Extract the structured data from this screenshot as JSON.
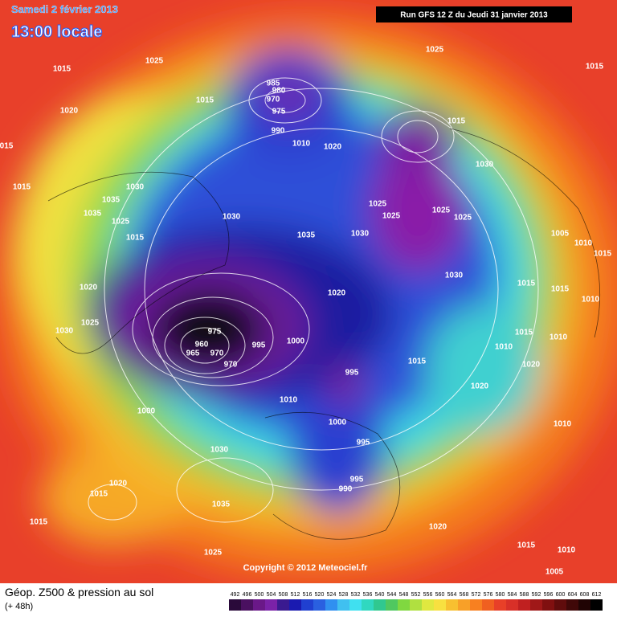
{
  "header": {
    "title": "Samedi 2 février 2013",
    "time": "13:00 locale",
    "run": "Run GFS 12 Z du Jeudi 31 janvier 2013"
  },
  "map": {
    "copyright": "Copyright © 2012 Meteociel.fr",
    "isobar_labels": [
      "1015",
      "1025",
      "1015",
      "1020",
      "015",
      "1015",
      "1035",
      "1030",
      "1035",
      "1025",
      "1015",
      "1020",
      "1025",
      "1030",
      "1000",
      "1030",
      "1020",
      "1015",
      "1035",
      "1015",
      "1025",
      "985",
      "980",
      "975",
      "970",
      "990",
      "1010",
      "1020",
      "1025",
      "1015",
      "1015",
      "1030",
      "1025",
      "1025",
      "1025",
      "1025",
      "1030",
      "1035",
      "1030",
      "1005",
      "1010",
      "1015",
      "1030",
      "1015",
      "1015",
      "1010",
      "1020",
      "975",
      "960",
      "965",
      "970",
      "995",
      "1000",
      "970",
      "995",
      "1010",
      "1000",
      "995",
      "1015",
      "1010",
      "1010",
      "1015",
      "1020",
      "1020",
      "1010",
      "995",
      "990",
      "1020",
      "1015",
      "1010",
      "1005"
    ]
  },
  "footer": {
    "title": "Géop. Z500 & pression au sol",
    "lead": "(+ 48h)",
    "colorbar": {
      "values": [
        492,
        496,
        500,
        504,
        508,
        512,
        516,
        520,
        524,
        528,
        532,
        536,
        540,
        544,
        548,
        552,
        556,
        560,
        564,
        568,
        572,
        576,
        580,
        584,
        588,
        592,
        596,
        600,
        604,
        608,
        612
      ],
      "colors": [
        "#2a0a3a",
        "#4a1060",
        "#6a1888",
        "#7a22a8",
        "#3a1a90",
        "#1a1ab0",
        "#2040d0",
        "#2a60e0",
        "#3090f0",
        "#40c0f0",
        "#40e0f0",
        "#30d8c0",
        "#30c890",
        "#50c860",
        "#80d840",
        "#b0e040",
        "#e0e840",
        "#f8e040",
        "#f8c030",
        "#f8a028",
        "#f88020",
        "#f06020",
        "#e84028",
        "#d83028",
        "#c02020",
        "#a01818",
        "#801010",
        "#600c0c",
        "#400808",
        "#200404",
        "#000000"
      ]
    }
  }
}
